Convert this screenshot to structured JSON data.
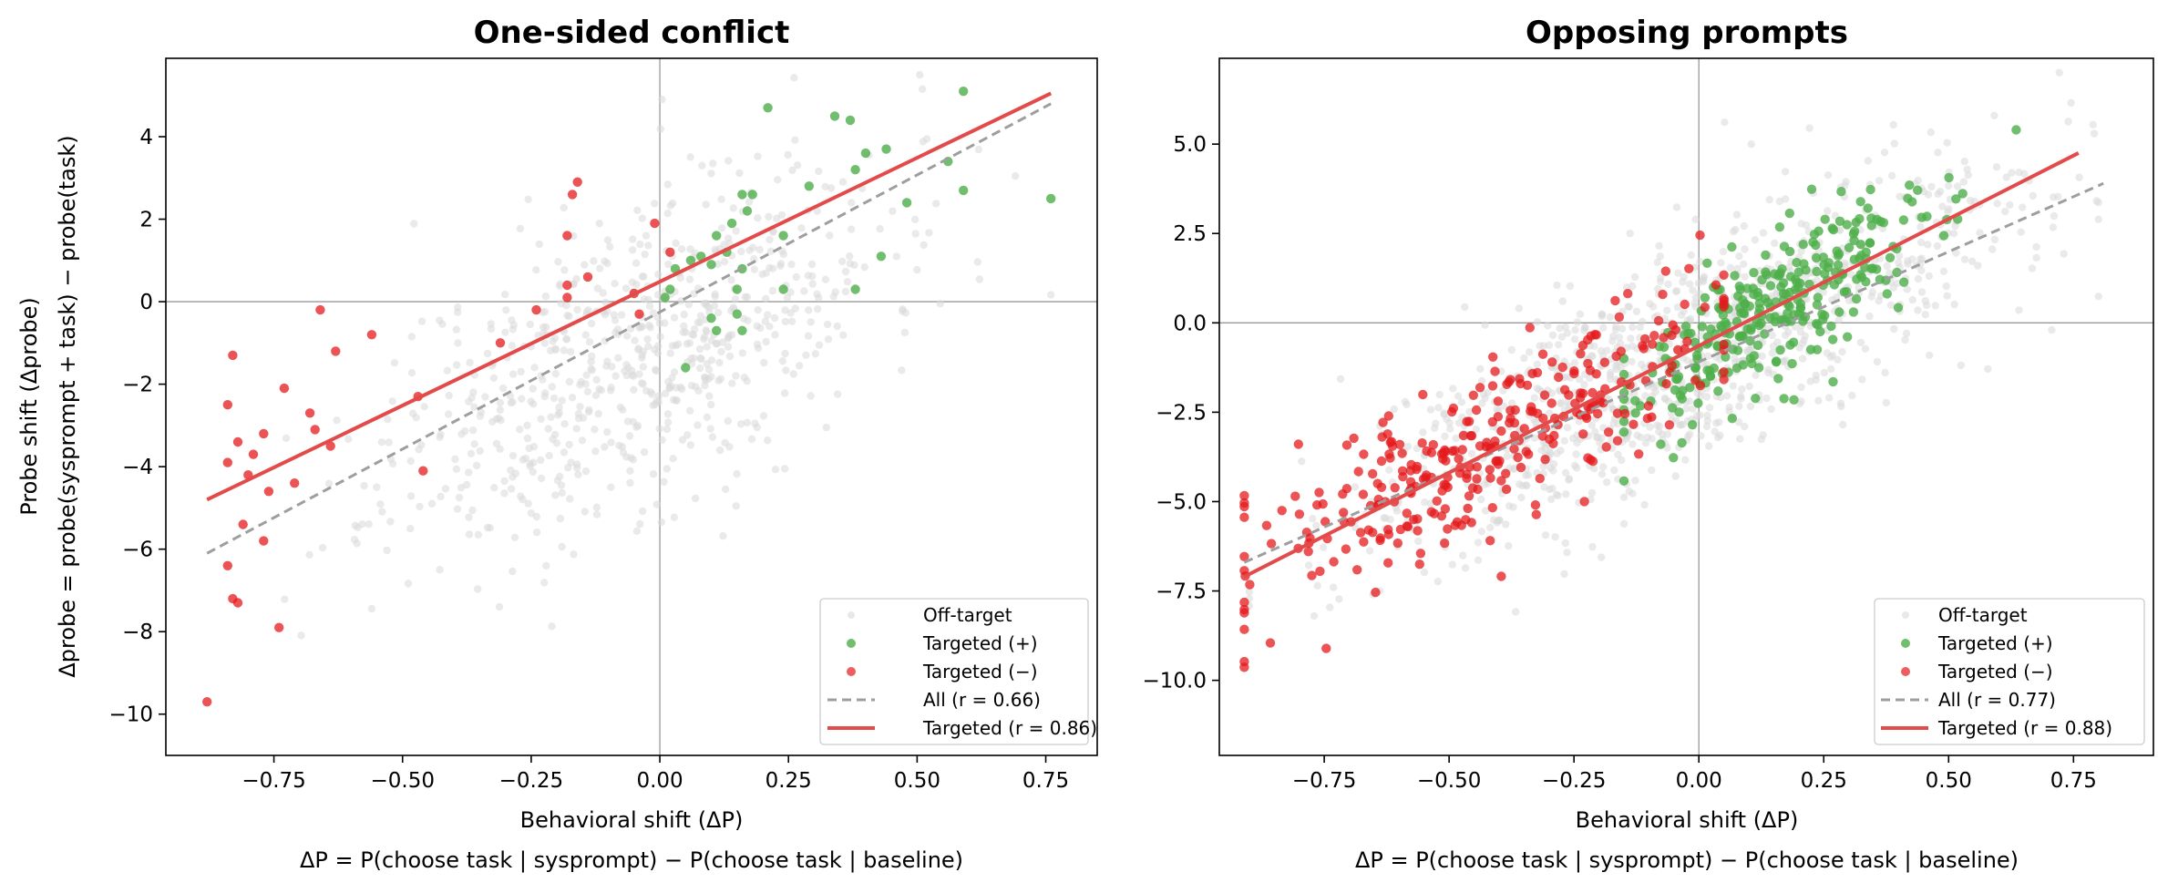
{
  "chart_data": [
    {
      "type": "scatter",
      "title": "One-sided conflict",
      "xlabel": "Behavioral shift  (ΔP)",
      "xlabel_sub": "ΔP = P(choose task | sysprompt) − P(choose task | baseline)",
      "ylabel": "Probe shift  (Δprobe)",
      "ylabel_sub": "Δprobe = probe(sysprompt + task) − probe(task)",
      "xlim": [
        -0.96,
        0.85
      ],
      "ylim": [
        -11,
        5.9
      ],
      "xticks": [
        -0.75,
        -0.5,
        -0.25,
        0.0,
        0.25,
        0.5,
        0.75
      ],
      "xtick_labels": [
        "−0.75",
        "−0.50",
        "−0.25",
        "0.00",
        "0.25",
        "0.50",
        "0.75"
      ],
      "yticks": [
        -10,
        -8,
        -6,
        -4,
        -2,
        0,
        2,
        4
      ],
      "ytick_labels": [
        "−10",
        "−8",
        "−6",
        "−4",
        "−2",
        "0",
        "2",
        "4"
      ],
      "legend_position": "bottom-right",
      "colors": {
        "offtarget": "#d9d9d9",
        "pos": "#4daf4a",
        "neg": "#e41a1c",
        "all_fit": "#9e9e9e",
        "targeted_fit": "#e34a4a"
      },
      "series": [
        {
          "name": "Off-target",
          "kind": "points",
          "style": "offtarget",
          "n": 700,
          "xmean": -0.05,
          "xsd": 0.24,
          "slope": 5.5,
          "icpt": -1.0,
          "noise": 1.9,
          "seed": 11,
          "xlim": [
            -0.86,
            0.76
          ]
        },
        {
          "name": "Targeted (+)",
          "kind": "points",
          "style": "pos",
          "points": [
            [
              0.59,
              5.1
            ],
            [
              0.37,
              4.4
            ],
            [
              0.34,
              4.5
            ],
            [
              0.21,
              4.7
            ],
            [
              0.4,
              3.6
            ],
            [
              0.44,
              3.7
            ],
            [
              0.56,
              3.4
            ],
            [
              0.38,
              3.2
            ],
            [
              0.29,
              2.8
            ],
            [
              0.48,
              2.4
            ],
            [
              0.59,
              2.7
            ],
            [
              0.76,
              2.5
            ],
            [
              0.16,
              2.6
            ],
            [
              0.18,
              2.6
            ],
            [
              0.17,
              2.2
            ],
            [
              0.14,
              1.9
            ],
            [
              0.24,
              1.6
            ],
            [
              0.11,
              1.6
            ],
            [
              0.13,
              1.2
            ],
            [
              0.08,
              1.1
            ],
            [
              0.06,
              1.0
            ],
            [
              0.1,
              0.9
            ],
            [
              0.03,
              0.8
            ],
            [
              0.16,
              0.8
            ],
            [
              0.43,
              1.1
            ],
            [
              0.02,
              0.3
            ],
            [
              0.01,
              0.1
            ],
            [
              0.15,
              0.3
            ],
            [
              0.24,
              0.3
            ],
            [
              0.38,
              0.3
            ],
            [
              0.1,
              -0.4
            ],
            [
              0.15,
              -0.3
            ],
            [
              0.11,
              -0.7
            ],
            [
              0.16,
              -0.7
            ],
            [
              0.05,
              -1.6
            ]
          ]
        },
        {
          "name": "Targeted (−)",
          "kind": "points",
          "style": "neg",
          "points": [
            [
              -0.16,
              2.9
            ],
            [
              -0.17,
              2.6
            ],
            [
              -0.18,
              1.6
            ],
            [
              -0.01,
              1.9
            ],
            [
              0.02,
              1.2
            ],
            [
              -0.14,
              0.6
            ],
            [
              -0.18,
              0.4
            ],
            [
              -0.05,
              0.2
            ],
            [
              -0.18,
              0.1
            ],
            [
              -0.24,
              -0.2
            ],
            [
              -0.04,
              -0.3
            ],
            [
              -0.31,
              -1.0
            ],
            [
              -0.56,
              -0.8
            ],
            [
              -0.66,
              -0.2
            ],
            [
              -0.63,
              -1.2
            ],
            [
              -0.83,
              -1.3
            ],
            [
              -0.84,
              -2.5
            ],
            [
              -0.73,
              -2.1
            ],
            [
              -0.68,
              -2.7
            ],
            [
              -0.67,
              -3.1
            ],
            [
              -0.64,
              -3.5
            ],
            [
              -0.82,
              -3.4
            ],
            [
              -0.77,
              -3.2
            ],
            [
              -0.79,
              -3.7
            ],
            [
              -0.84,
              -3.9
            ],
            [
              -0.8,
              -4.2
            ],
            [
              -0.76,
              -4.6
            ],
            [
              -0.71,
              -4.4
            ],
            [
              -0.47,
              -2.3
            ],
            [
              -0.46,
              -4.1
            ],
            [
              -0.81,
              -5.4
            ],
            [
              -0.77,
              -5.8
            ],
            [
              -0.84,
              -6.4
            ],
            [
              -0.83,
              -7.2
            ],
            [
              -0.82,
              -7.3
            ],
            [
              -0.74,
              -7.9
            ],
            [
              -0.88,
              -9.7
            ]
          ]
        },
        {
          "name": "All (r = 0.66)",
          "kind": "line",
          "style": "all_fit",
          "x": [
            -0.88,
            0.76
          ],
          "y": [
            -6.1,
            4.8
          ]
        },
        {
          "name": "Targeted (r = 0.86)",
          "kind": "line",
          "style": "targeted_fit",
          "x": [
            -0.88,
            0.76
          ],
          "y": [
            -4.8,
            5.05
          ]
        }
      ]
    },
    {
      "type": "scatter",
      "title": "Opposing prompts",
      "xlabel": "Behavioral shift  (ΔP)",
      "xlabel_sub": "ΔP = P(choose task | sysprompt) − P(choose task | baseline)",
      "xlim": [
        -0.96,
        0.91
      ],
      "ylim": [
        -12.1,
        7.4
      ],
      "xticks": [
        -0.75,
        -0.5,
        -0.25,
        0.0,
        0.25,
        0.5,
        0.75
      ],
      "xtick_labels": [
        "−0.75",
        "−0.50",
        "−0.25",
        "0.00",
        "0.25",
        "0.50",
        "0.75"
      ],
      "yticks": [
        -10,
        -7.5,
        -5,
        -2.5,
        0,
        2.5,
        5
      ],
      "ytick_labels": [
        "−10.0",
        "−7.5",
        "−5.0",
        "−2.5",
        "0.0",
        "2.5",
        "5.0"
      ],
      "legend_position": "bottom-right",
      "colors": {
        "offtarget": "#d9d9d9",
        "pos": "#4daf4a",
        "neg": "#e41a1c",
        "all_fit": "#9e9e9e",
        "targeted_fit": "#e34a4a"
      },
      "series": [
        {
          "name": "Off-target",
          "kind": "points",
          "style": "offtarget",
          "n": 1100,
          "xmean": -0.05,
          "xsd": 0.32,
          "slope": 6.4,
          "icpt": -0.8,
          "noise": 1.5,
          "seed": 29,
          "xlim": [
            -0.9,
            0.8
          ]
        },
        {
          "name": "Targeted (+)",
          "kind": "points",
          "style": "pos",
          "n": 300,
          "xmean": 0.17,
          "xsd": 0.17,
          "slope": 8.6,
          "icpt": -0.95,
          "noise": 1.0,
          "seed": 53,
          "xlim": [
            -0.15,
            0.76
          ]
        },
        {
          "name": "Targeted (−)",
          "kind": "points",
          "style": "neg",
          "n": 320,
          "xmean": -0.42,
          "xsd": 0.27,
          "slope": 7.2,
          "icpt": -0.45,
          "noise": 1.2,
          "seed": 71,
          "xlim": [
            -0.91,
            0.05
          ]
        },
        {
          "name": "All (r = 0.77)",
          "kind": "line",
          "style": "all_fit",
          "x": [
            -0.91,
            0.81
          ],
          "y": [
            -6.7,
            3.9
          ]
        },
        {
          "name": "Targeted (r = 0.88)",
          "kind": "line",
          "style": "targeted_fit",
          "x": [
            -0.91,
            0.76
          ],
          "y": [
            -7.1,
            4.75
          ]
        }
      ]
    }
  ]
}
